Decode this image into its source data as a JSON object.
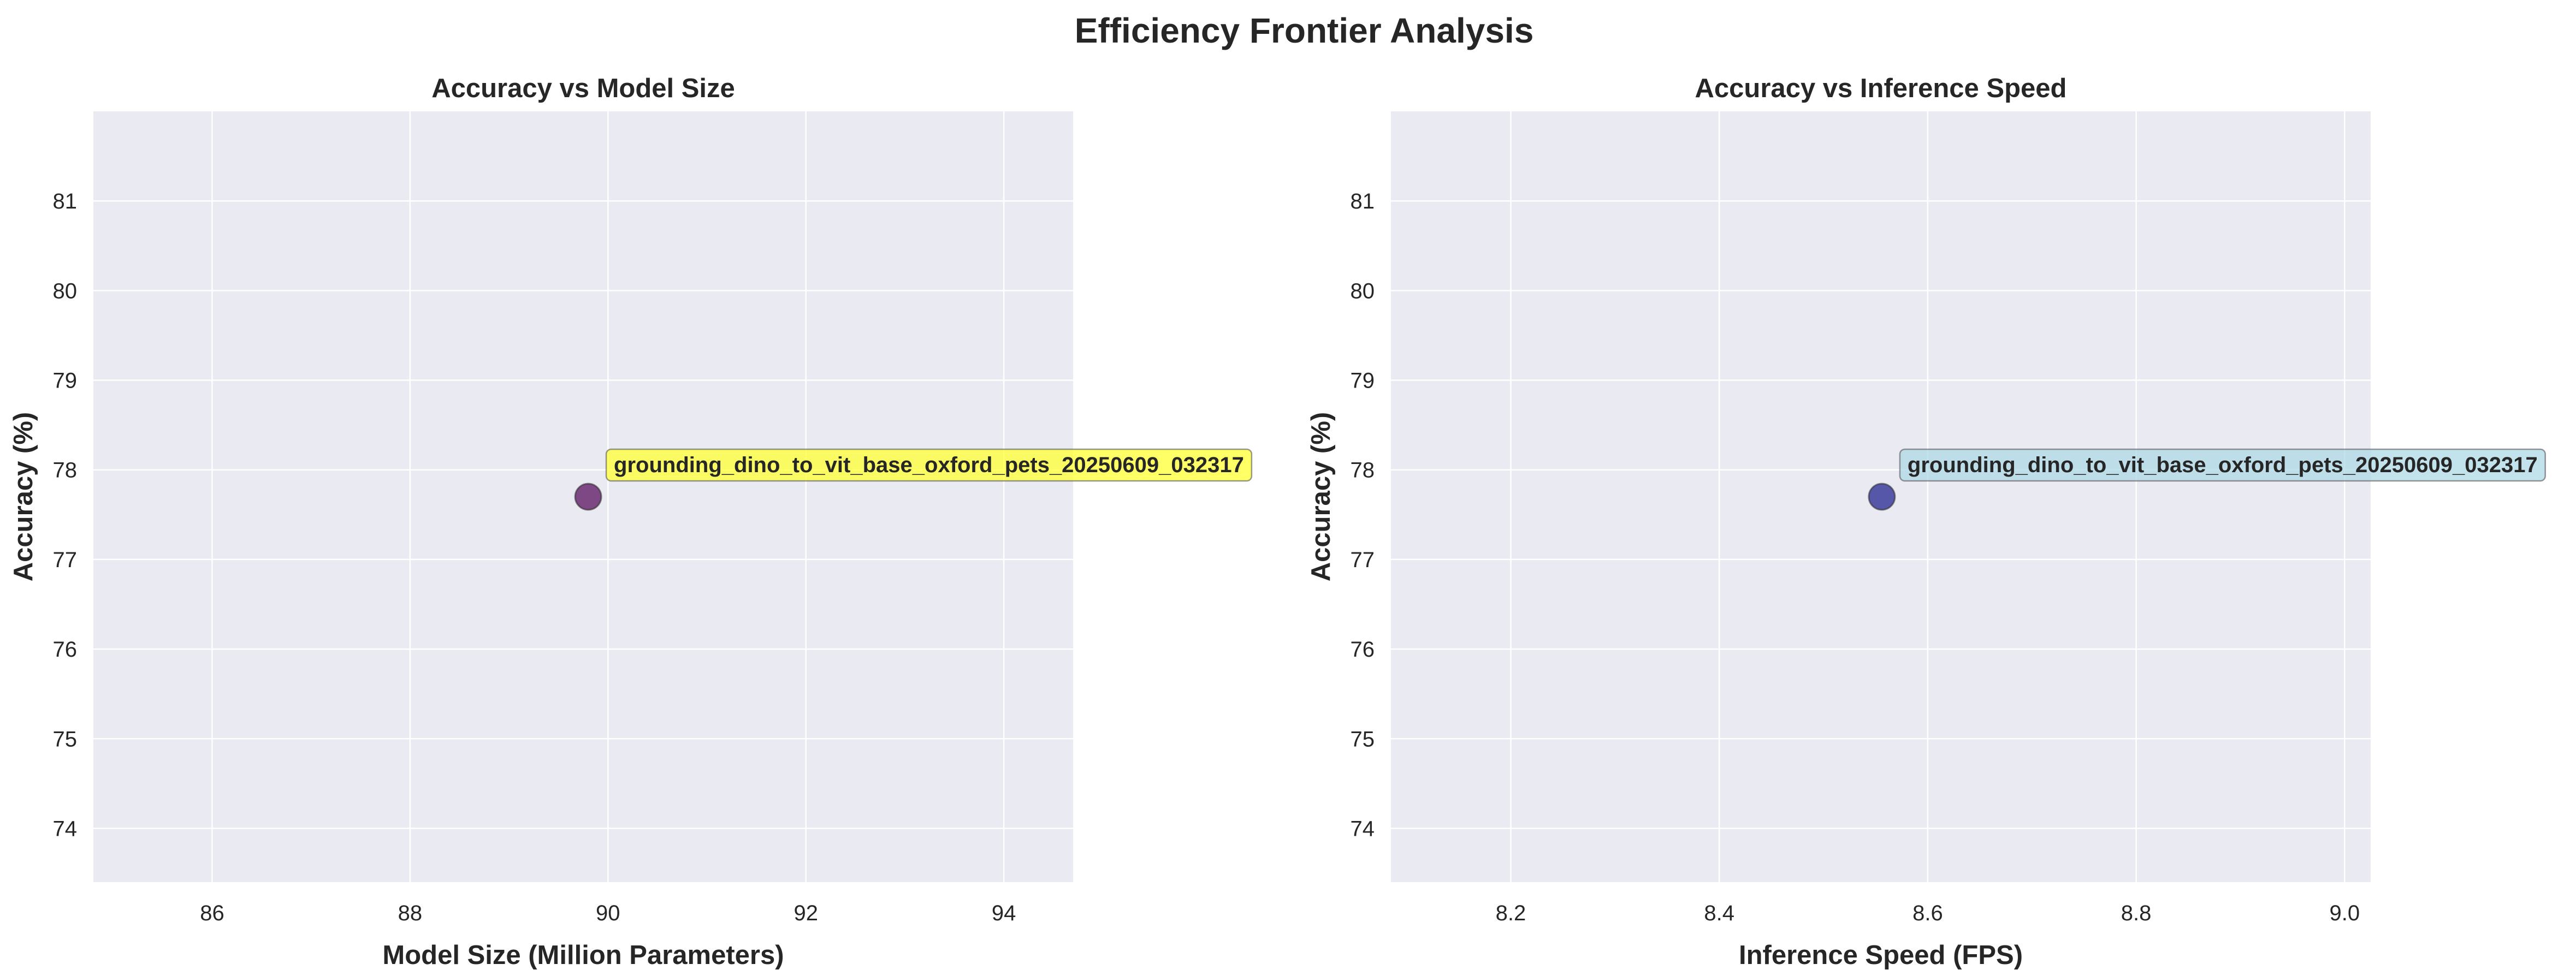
{
  "figure": {
    "title": "Efficiency Frontier Analysis"
  },
  "chart_data": [
    {
      "type": "scatter",
      "title": "Accuracy vs Model Size",
      "xlabel": "Model Size (Million Parameters)",
      "ylabel": "Accuracy (%)",
      "xlim": [
        84.8,
        94.7
      ],
      "ylim": [
        73.4,
        82.0
      ],
      "xticks": [
        86,
        88,
        90,
        92,
        94
      ],
      "yticks": [
        74,
        75,
        76,
        77,
        78,
        79,
        80,
        81
      ],
      "grid": true,
      "points": [
        {
          "x": 89.8,
          "y": 77.7,
          "label": "grounding_dino_to_vit_base_oxford_pets_20250609_032317",
          "color": "#6a2c70",
          "label_bg": "#ffff33"
        }
      ]
    },
    {
      "type": "scatter",
      "title": "Accuracy vs Inference Speed",
      "xlabel": "Inference Speed (FPS)",
      "ylabel": "Accuracy (%)",
      "xlim": [
        8.085,
        9.025
      ],
      "ylim": [
        73.4,
        82.0
      ],
      "xticks": [
        8.2,
        8.4,
        8.6,
        8.8,
        9.0
      ],
      "yticks": [
        74,
        75,
        76,
        77,
        78,
        79,
        80,
        81
      ],
      "grid": true,
      "points": [
        {
          "x": 8.556,
          "y": 77.7,
          "label": "grounding_dino_to_vit_base_oxford_pets_20250609_032317",
          "color": "#3d3d9e",
          "label_bg": "#add8e6"
        }
      ]
    }
  ]
}
